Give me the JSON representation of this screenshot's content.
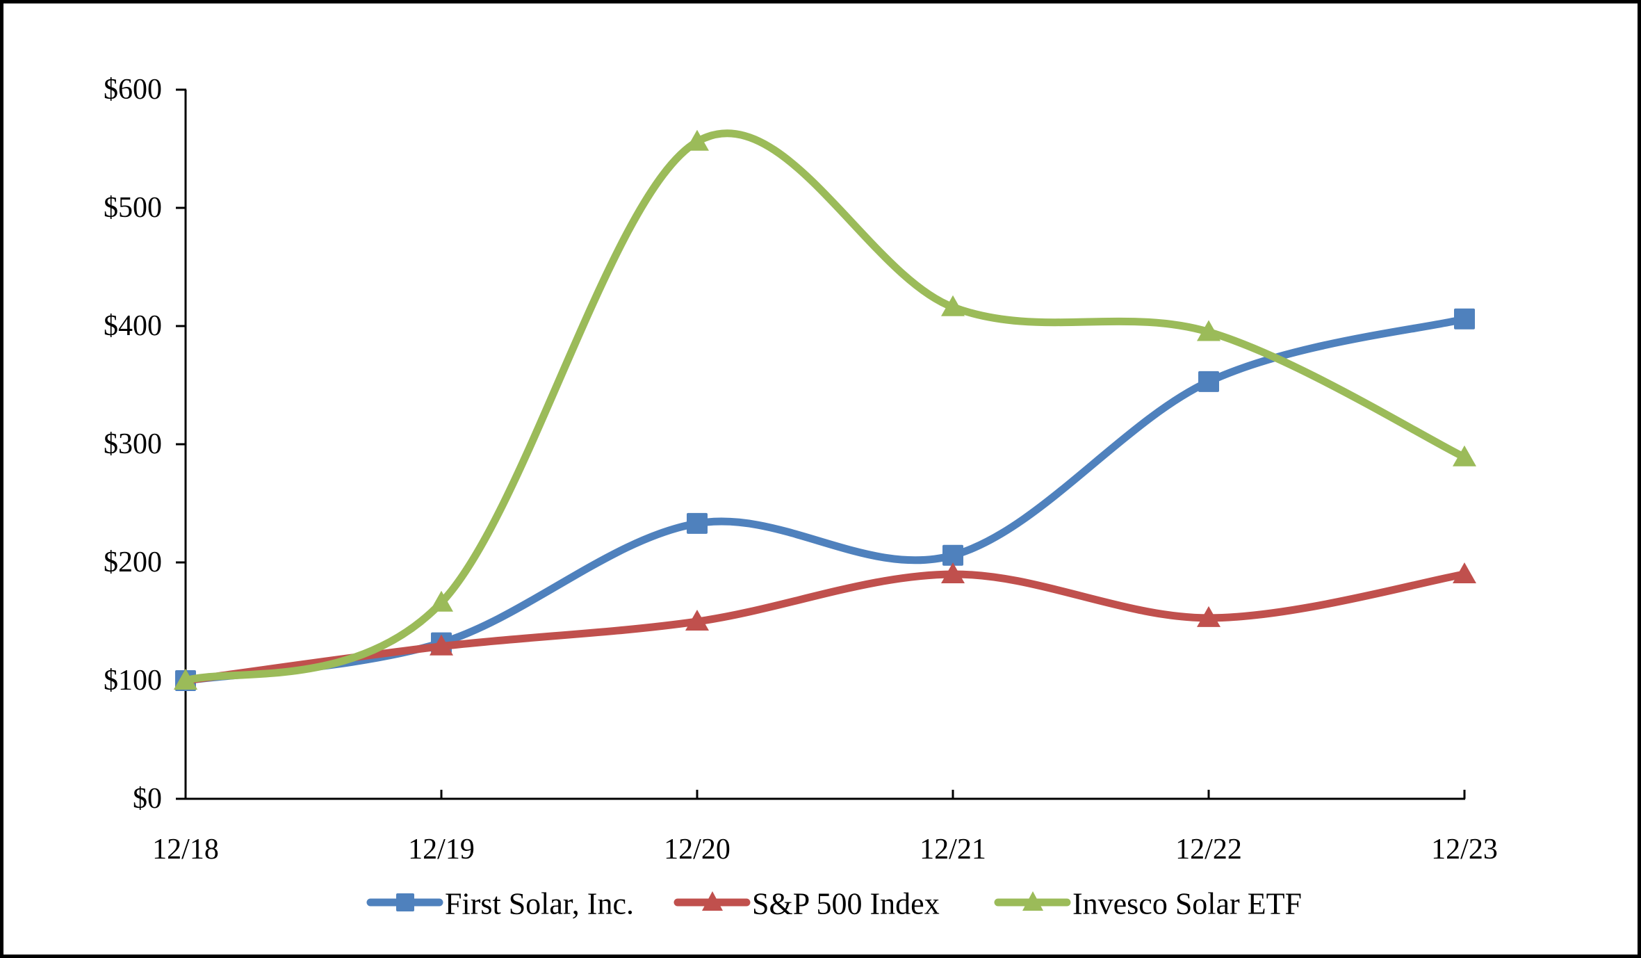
{
  "figure": {
    "background": "#ffffff",
    "border_color": "#000000"
  },
  "chart_data": {
    "type": "line",
    "smoothed": true,
    "grid": false,
    "title": "",
    "xlabel": "",
    "ylabel": "",
    "legend_position": "bottom",
    "x_categories": [
      "12/18",
      "12/19",
      "12/20",
      "12/21",
      "12/22",
      "12/23"
    ],
    "y_tick_labels": [
      "$0",
      "$100",
      "$200",
      "$300",
      "$400",
      "$500",
      "$600"
    ],
    "ylim": [
      0,
      600
    ],
    "y_tick_interval": 100,
    "series": [
      {
        "name": "First Solar, Inc.",
        "color": "#4F81BD",
        "marker": "square",
        "values": [
          100,
          132,
          233,
          206,
          353,
          406
        ]
      },
      {
        "name": "S&P 500 Index",
        "color": "#C0504D",
        "marker": "triangle",
        "values": [
          100,
          129,
          150,
          190,
          153,
          190
        ]
      },
      {
        "name": "Invesco Solar ETF",
        "color": "#9BBB59",
        "marker": "triangle",
        "values": [
          100,
          166,
          556,
          416,
          395,
          289
        ]
      }
    ]
  }
}
